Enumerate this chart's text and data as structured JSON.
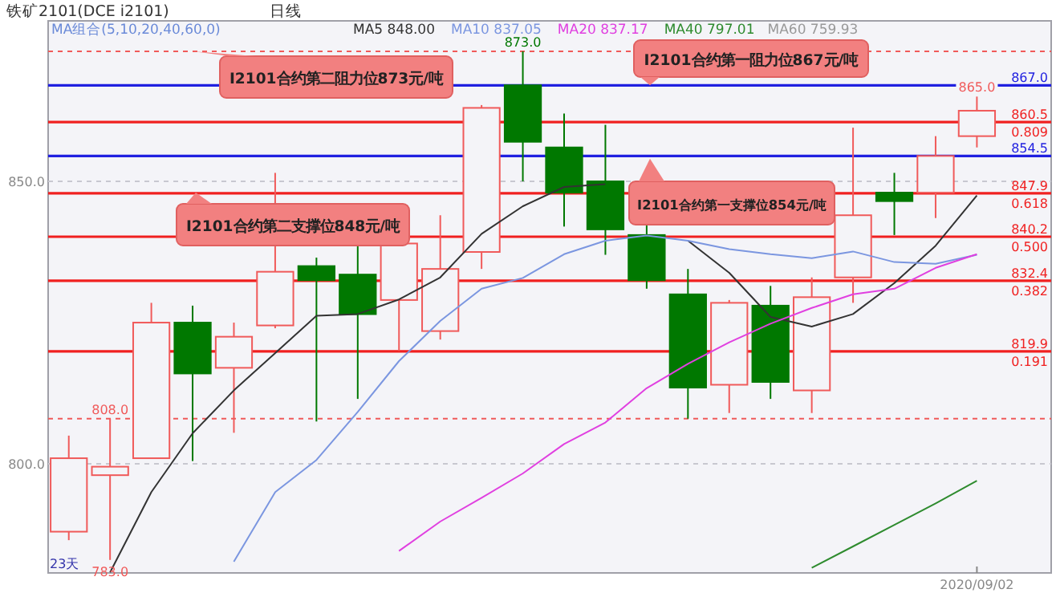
{
  "chart_data": {
    "type": "candlestick",
    "title": "铁矿2101(DCE i2101)",
    "subtitle": "日线",
    "categories": [
      null,
      null,
      null,
      null,
      null,
      null,
      null,
      null,
      null,
      null,
      null,
      null,
      null,
      null,
      null,
      null,
      null,
      null,
      null,
      null,
      null,
      null,
      "2020/09/02"
    ],
    "ohlc": [
      [
        788,
        805,
        786.5,
        801
      ],
      [
        798,
        808,
        783,
        799.5
      ],
      [
        801,
        828.5,
        801,
        825
      ],
      [
        825,
        828,
        800.5,
        816
      ],
      [
        817,
        825,
        805.5,
        822.5
      ],
      [
        824.5,
        851.5,
        824,
        834
      ],
      [
        835,
        836.5,
        807.5,
        832.5
      ],
      [
        833.5,
        839,
        811.5,
        826.5
      ],
      [
        829,
        839,
        820,
        839
      ],
      [
        823.5,
        844,
        822,
        834.5
      ],
      [
        837.5,
        863.5,
        834.5,
        863
      ],
      [
        867,
        873,
        850,
        857
      ],
      [
        856,
        862,
        842,
        848
      ],
      [
        850,
        860,
        837,
        841.5
      ],
      [
        840.5,
        842.5,
        831,
        832.5
      ],
      [
        830,
        834.5,
        808,
        813.5
      ],
      [
        814,
        829,
        809,
        828.5
      ],
      [
        828,
        831.5,
        811.5,
        814.5
      ],
      [
        813,
        833,
        809,
        829.5
      ],
      [
        833,
        859.5,
        828.5,
        844
      ],
      [
        848,
        851.5,
        840.5,
        846.5
      ],
      [
        848,
        858,
        843.5,
        854.5
      ],
      [
        858,
        865,
        856,
        862.5
      ]
    ],
    "colors": [
      "#f05a5a",
      "#f05a5a",
      "#f05a5a",
      "#007800",
      "#f05a5a",
      "#f05a5a",
      "#007800",
      "#007800",
      "#f05a5a",
      "#f05a5a",
      "#f05a5a",
      "#007800",
      "#007800",
      "#007800",
      "#007800",
      "#007800",
      "#f05a5a",
      "#007800",
      "#f05a5a",
      "#f05a5a",
      "#007800",
      "#f05a5a",
      "#f05a5a"
    ],
    "series": [
      {
        "name": "MA5 848.00",
        "type": "line",
        "color": "#333333",
        "values": [
          null,
          780.8,
          795,
          805.4,
          813,
          819.6,
          826.2,
          826.5,
          829.1,
          833,
          840.7,
          845.6,
          849,
          849.5,
          null,
          839.5,
          833.8,
          826,
          824.3,
          826.5,
          832,
          838.6,
          847.5
        ]
      },
      {
        "name": "MA10 837.05",
        "type": "line",
        "color": "#7b96e0",
        "values": [
          null,
          null,
          null,
          null,
          782.7,
          795,
          800.7,
          809.2,
          818.2,
          825.3,
          831,
          832.9,
          837.1,
          839.5,
          840.4,
          839.5,
          838,
          837.1,
          836.4,
          837.6,
          835.7,
          835.4,
          837
        ]
      },
      {
        "name": "MA20 837.17",
        "type": "line",
        "color": "#e040e0",
        "values": [
          null,
          null,
          null,
          null,
          null,
          null,
          null,
          null,
          784.6,
          789.8,
          794,
          798.3,
          803.5,
          807.3,
          813.4,
          817.7,
          821.5,
          824.8,
          827.6,
          830,
          831,
          834.7,
          837.1
        ]
      },
      {
        "name": "MA40 797.01",
        "type": "line",
        "color": "#2e8b2e",
        "values": [
          null,
          null,
          null,
          null,
          null,
          null,
          null,
          null,
          null,
          null,
          null,
          null,
          null,
          null,
          null,
          null,
          null,
          null,
          781.6,
          785.4,
          789.2,
          793,
          797
        ]
      }
    ],
    "ylim": [
      780.7,
      878.4
    ],
    "yticks": [
      {
        "value": 850,
        "label": "850.0"
      },
      {
        "value": 800,
        "label": "800.0"
      }
    ],
    "grid": "y",
    "legend": "top",
    "line_style": "solid",
    "ref_lines": [
      {
        "axis": "y",
        "value": 867,
        "label": "867.0",
        "color": "#2020e0"
      },
      {
        "axis": "y",
        "value": 860.5,
        "label": "860.5\n0.809",
        "color": "#f02020"
      },
      {
        "axis": "y",
        "value": 854.5,
        "label": "854.5",
        "color": "#2020e0"
      },
      {
        "axis": "y",
        "value": 847.9,
        "label": "847.9\n0.618",
        "color": "#f02020"
      },
      {
        "axis": "y",
        "value": 840.2,
        "label": "840.2\n0.500",
        "color": "#f02020"
      },
      {
        "axis": "y",
        "value": 832.4,
        "label": "832.4\n0.382",
        "color": "#f02020"
      },
      {
        "axis": "y",
        "value": 819.9,
        "label": "819.9\n0.191",
        "color": "#f02020"
      },
      {
        "axis": "y",
        "value": 873,
        "color": "#f05a5a",
        "line_style": "dashed"
      },
      {
        "axis": "y",
        "value": 808,
        "color": "#f05a5a",
        "line_style": "dashed"
      }
    ],
    "annotations": [
      "MA组合(5,10,20,40,60,0)",
      "MA60 759.93",
      "23天",
      {
        "text": "I2101合约第二阻力位873元/吨",
        "y": 873
      },
      {
        "text": "I2101合约第一阻力位867元/吨",
        "y": 867
      },
      {
        "text": "I2101合约第二支撑位848元/吨",
        "y": 848
      },
      {
        "text": "I2101合约第一支撑位854元/吨",
        "y": 854
      },
      {
        "text": "873.0",
        "y": 873
      },
      {
        "text": "808.0",
        "y": 808
      },
      {
        "text": "783.0",
        "y": 783
      },
      {
        "text": "865.0",
        "y": 865
      }
    ]
  }
}
